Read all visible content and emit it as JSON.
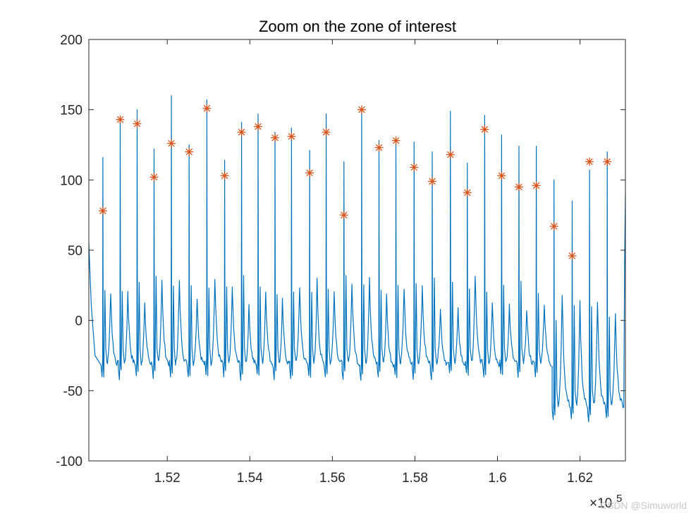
{
  "chart_data": {
    "type": "line",
    "title": "Zoom on the zone of interest",
    "xlabel": "",
    "ylabel": "",
    "xlim": [
      150100,
      163100
    ],
    "ylim": [
      -100,
      200
    ],
    "x_multiplier_label": "×10",
    "x_multiplier_exponent": "5",
    "x_ticks": [
      152000,
      154000,
      156000,
      158000,
      160000,
      162000
    ],
    "x_tick_labels": [
      "1.52",
      "1.54",
      "1.56",
      "1.58",
      "1.6",
      "1.62"
    ],
    "y_ticks": [
      -100,
      -50,
      0,
      50,
      100,
      150,
      200
    ],
    "y_tick_labels": [
      "-100",
      "-50",
      "0",
      "50",
      "100",
      "150",
      "200"
    ],
    "grid": false,
    "colors": {
      "signal": "#0072BD",
      "peaks": "#D95319",
      "axis": "#262626"
    },
    "series": [
      {
        "name": "signal",
        "style": "line",
        "start": [
          150100,
          55
        ],
        "end": [
          163100,
          90
        ],
        "beats": [
          {
            "x": 150440,
            "peak": 116
          },
          {
            "x": 150860,
            "peak": 145
          },
          {
            "x": 151270,
            "peak": 150
          },
          {
            "x": 151680,
            "peak": 122
          },
          {
            "x": 152100,
            "peak": 160
          },
          {
            "x": 152530,
            "peak": 125
          },
          {
            "x": 152960,
            "peak": 157
          },
          {
            "x": 153390,
            "peak": 114
          },
          {
            "x": 153800,
            "peak": 141
          },
          {
            "x": 154200,
            "peak": 147
          },
          {
            "x": 154610,
            "peak": 134
          },
          {
            "x": 155010,
            "peak": 137
          },
          {
            "x": 155450,
            "peak": 121
          },
          {
            "x": 155850,
            "peak": 147
          },
          {
            "x": 156280,
            "peak": 113
          },
          {
            "x": 156710,
            "peak": 150
          },
          {
            "x": 157130,
            "peak": 128
          },
          {
            "x": 157540,
            "peak": 129
          },
          {
            "x": 157980,
            "peak": 127
          },
          {
            "x": 158420,
            "peak": 120
          },
          {
            "x": 158860,
            "peak": 149
          },
          {
            "x": 159270,
            "peak": 112
          },
          {
            "x": 159690,
            "peak": 146
          },
          {
            "x": 160100,
            "peak": 132
          },
          {
            "x": 160520,
            "peak": 124
          },
          {
            "x": 160940,
            "peak": 124
          },
          {
            "x": 161370,
            "peak": 100
          },
          {
            "x": 161810,
            "peak": 85
          },
          {
            "x": 162230,
            "peak": 107
          },
          {
            "x": 162660,
            "peak": 120
          }
        ]
      },
      {
        "name": "peaks",
        "style": "markers",
        "marker": "asterisk",
        "points": [
          [
            150440,
            78
          ],
          [
            150860,
            143
          ],
          [
            151270,
            140
          ],
          [
            151680,
            102
          ],
          [
            152100,
            126
          ],
          [
            152530,
            120
          ],
          [
            152960,
            151
          ],
          [
            153390,
            103
          ],
          [
            153800,
            134
          ],
          [
            154200,
            138
          ],
          [
            154610,
            130
          ],
          [
            155010,
            131
          ],
          [
            155450,
            105
          ],
          [
            155850,
            134
          ],
          [
            156280,
            75
          ],
          [
            156710,
            150
          ],
          [
            157130,
            123
          ],
          [
            157540,
            128
          ],
          [
            157980,
            109
          ],
          [
            158420,
            99
          ],
          [
            158860,
            118
          ],
          [
            159270,
            91
          ],
          [
            159690,
            136
          ],
          [
            160100,
            103
          ],
          [
            160520,
            95
          ],
          [
            160940,
            96
          ],
          [
            161370,
            67
          ],
          [
            161810,
            46
          ],
          [
            162230,
            113
          ],
          [
            162660,
            113
          ]
        ]
      }
    ]
  },
  "watermark": "CSDN @Simuworld"
}
